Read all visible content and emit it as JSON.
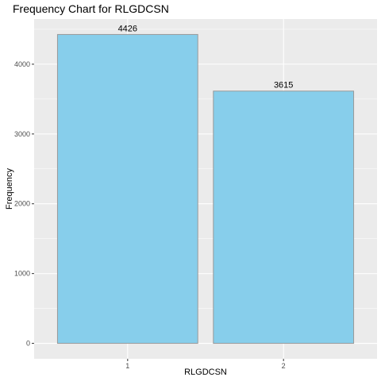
{
  "chart_data": {
    "type": "bar",
    "title": "Frequency Chart for RLGDCSN",
    "xlabel": "RLGDCSN",
    "ylabel": "Frequency",
    "categories": [
      "1",
      "2"
    ],
    "values": [
      4426,
      3615
    ],
    "data_labels": [
      "4426",
      "3615"
    ],
    "yticks": [
      0,
      1000,
      2000,
      3000,
      4000
    ],
    "ylim": [
      -221,
      4647
    ],
    "grid": true,
    "colors": {
      "panel": "#ebebeb",
      "grid_major": "#ffffff",
      "bar_fill": "#87ceeb",
      "bar_outline": "#999999"
    }
  }
}
